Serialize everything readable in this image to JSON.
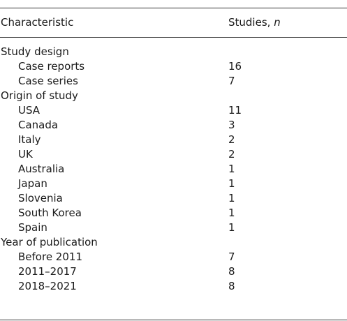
{
  "table": {
    "header": {
      "characteristic": "Characteristic",
      "count_label": "Studies,",
      "count_symbol": "n"
    },
    "groups": [
      {
        "label": "Study design",
        "rows": [
          {
            "label": "Case reports",
            "n": 16
          },
          {
            "label": "Case series",
            "n": 7
          }
        ]
      },
      {
        "label": "Origin of study",
        "rows": [
          {
            "label": "USA",
            "n": 11
          },
          {
            "label": "Canada",
            "n": 3
          },
          {
            "label": "Italy",
            "n": 2
          },
          {
            "label": "UK",
            "n": 2
          },
          {
            "label": "Australia",
            "n": 1
          },
          {
            "label": "Japan",
            "n": 1
          },
          {
            "label": "Slovenia",
            "n": 1
          },
          {
            "label": "South Korea",
            "n": 1
          },
          {
            "label": "Spain",
            "n": 1
          }
        ]
      },
      {
        "label": "Year of publication",
        "rows": [
          {
            "label": "Before 2011",
            "n": 7
          },
          {
            "label": "2011–2017",
            "n": 8
          },
          {
            "label": "2018–2021",
            "n": 8
          }
        ]
      }
    ]
  }
}
